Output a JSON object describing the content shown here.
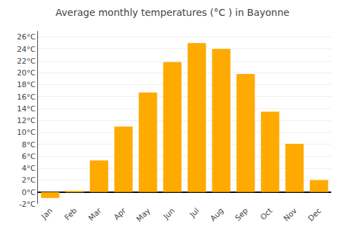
{
  "chart_data": {
    "type": "bar",
    "title": "Average monthly temperatures (°C ) in Bayonne",
    "categories": [
      "Jan",
      "Feb",
      "Mar",
      "Apr",
      "May",
      "Jun",
      "Jul",
      "Aug",
      "Sep",
      "Oct",
      "Nov",
      "Dec"
    ],
    "values": [
      -1.0,
      0.2,
      5.3,
      11.0,
      16.7,
      21.8,
      25.0,
      24.0,
      19.8,
      13.5,
      8.1,
      2.0
    ],
    "color": "#FFAA00",
    "ylim": [
      -2,
      27
    ],
    "yticks": [
      {
        "value": -2,
        "label": "-2°C"
      },
      {
        "value": 0,
        "label": "0°C"
      },
      {
        "value": 2,
        "label": "2°C"
      },
      {
        "value": 4,
        "label": "4°C"
      },
      {
        "value": 6,
        "label": "6°C"
      },
      {
        "value": 8,
        "label": "8°C"
      },
      {
        "value": 10,
        "label": "10°C"
      },
      {
        "value": 12,
        "label": "12°C"
      },
      {
        "value": 14,
        "label": "14°C"
      },
      {
        "value": 16,
        "label": "16°C"
      },
      {
        "value": 18,
        "label": "18°C"
      },
      {
        "value": 20,
        "label": "20°C"
      },
      {
        "value": 22,
        "label": "22°C"
      },
      {
        "value": 24,
        "label": "24°C"
      },
      {
        "value": 26,
        "label": "26°C"
      }
    ],
    "grid": true
  }
}
